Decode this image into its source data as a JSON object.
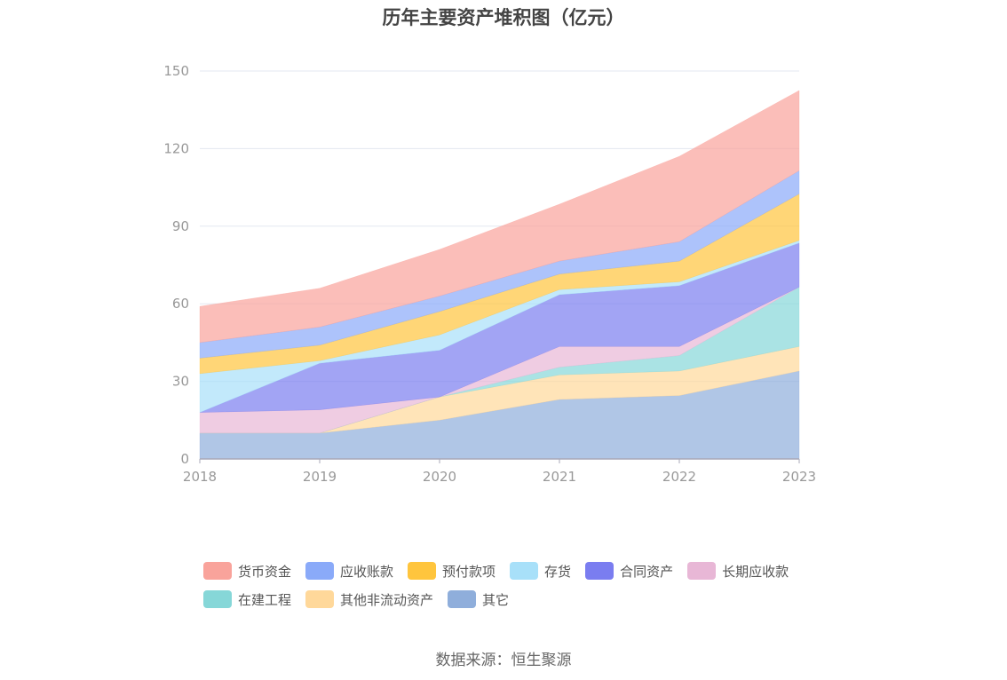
{
  "chart_data": {
    "type": "area",
    "stacked": true,
    "title": "历年主要资产堆积图（亿元）",
    "categories": [
      "2018",
      "2019",
      "2020",
      "2021",
      "2022",
      "2023"
    ],
    "ylim": [
      0,
      150
    ],
    "yticks": [
      0,
      30,
      60,
      90,
      120,
      150
    ],
    "grid": true,
    "legend_position": "bottom",
    "series": [
      {
        "name": "其它",
        "color": "#8faedb",
        "values": [
          10,
          10,
          15,
          23,
          24.5,
          34
        ]
      },
      {
        "name": "其他非流动资产",
        "color": "#ffd89a",
        "values": [
          0,
          0,
          9,
          9.5,
          9.5,
          9.5
        ]
      },
      {
        "name": "在建工程",
        "color": "#86d7d8",
        "values": [
          0,
          0,
          0,
          3,
          6,
          23
        ]
      },
      {
        "name": "长期应收款",
        "color": "#e8b7d6",
        "values": [
          8,
          9,
          0,
          8,
          3.5,
          0
        ]
      },
      {
        "name": "合同资产",
        "color": "#7a7df0",
        "values": [
          0,
          18,
          18,
          20,
          23.5,
          17
        ]
      },
      {
        "name": "存货",
        "color": "#a8e0f9",
        "values": [
          15,
          1,
          6,
          2,
          1.5,
          1
        ]
      },
      {
        "name": "预付款项",
        "color": "#ffc53d",
        "values": [
          6,
          6,
          9,
          6,
          8,
          18
        ]
      },
      {
        "name": "应收账款",
        "color": "#8aaaf9",
        "values": [
          6,
          7,
          6,
          5,
          7.5,
          9
        ]
      },
      {
        "name": "货币资金",
        "color": "#f9a39b",
        "values": [
          14,
          15,
          18,
          22,
          33,
          31
        ]
      }
    ]
  },
  "legend": {
    "items": [
      {
        "label": "货币资金",
        "color": "#f9a39b"
      },
      {
        "label": "应收账款",
        "color": "#8aaaf9"
      },
      {
        "label": "预付款项",
        "color": "#ffc53d"
      },
      {
        "label": "存货",
        "color": "#a8e0f9"
      },
      {
        "label": "合同资产",
        "color": "#7a7df0"
      },
      {
        "label": "长期应收款",
        "color": "#e8b7d6"
      },
      {
        "label": "在建工程",
        "color": "#86d7d8"
      },
      {
        "label": "其他非流动资产",
        "color": "#ffd89a"
      },
      {
        "label": "其它",
        "color": "#8faedb"
      }
    ]
  },
  "footer": {
    "source": "数据来源：恒生聚源"
  }
}
